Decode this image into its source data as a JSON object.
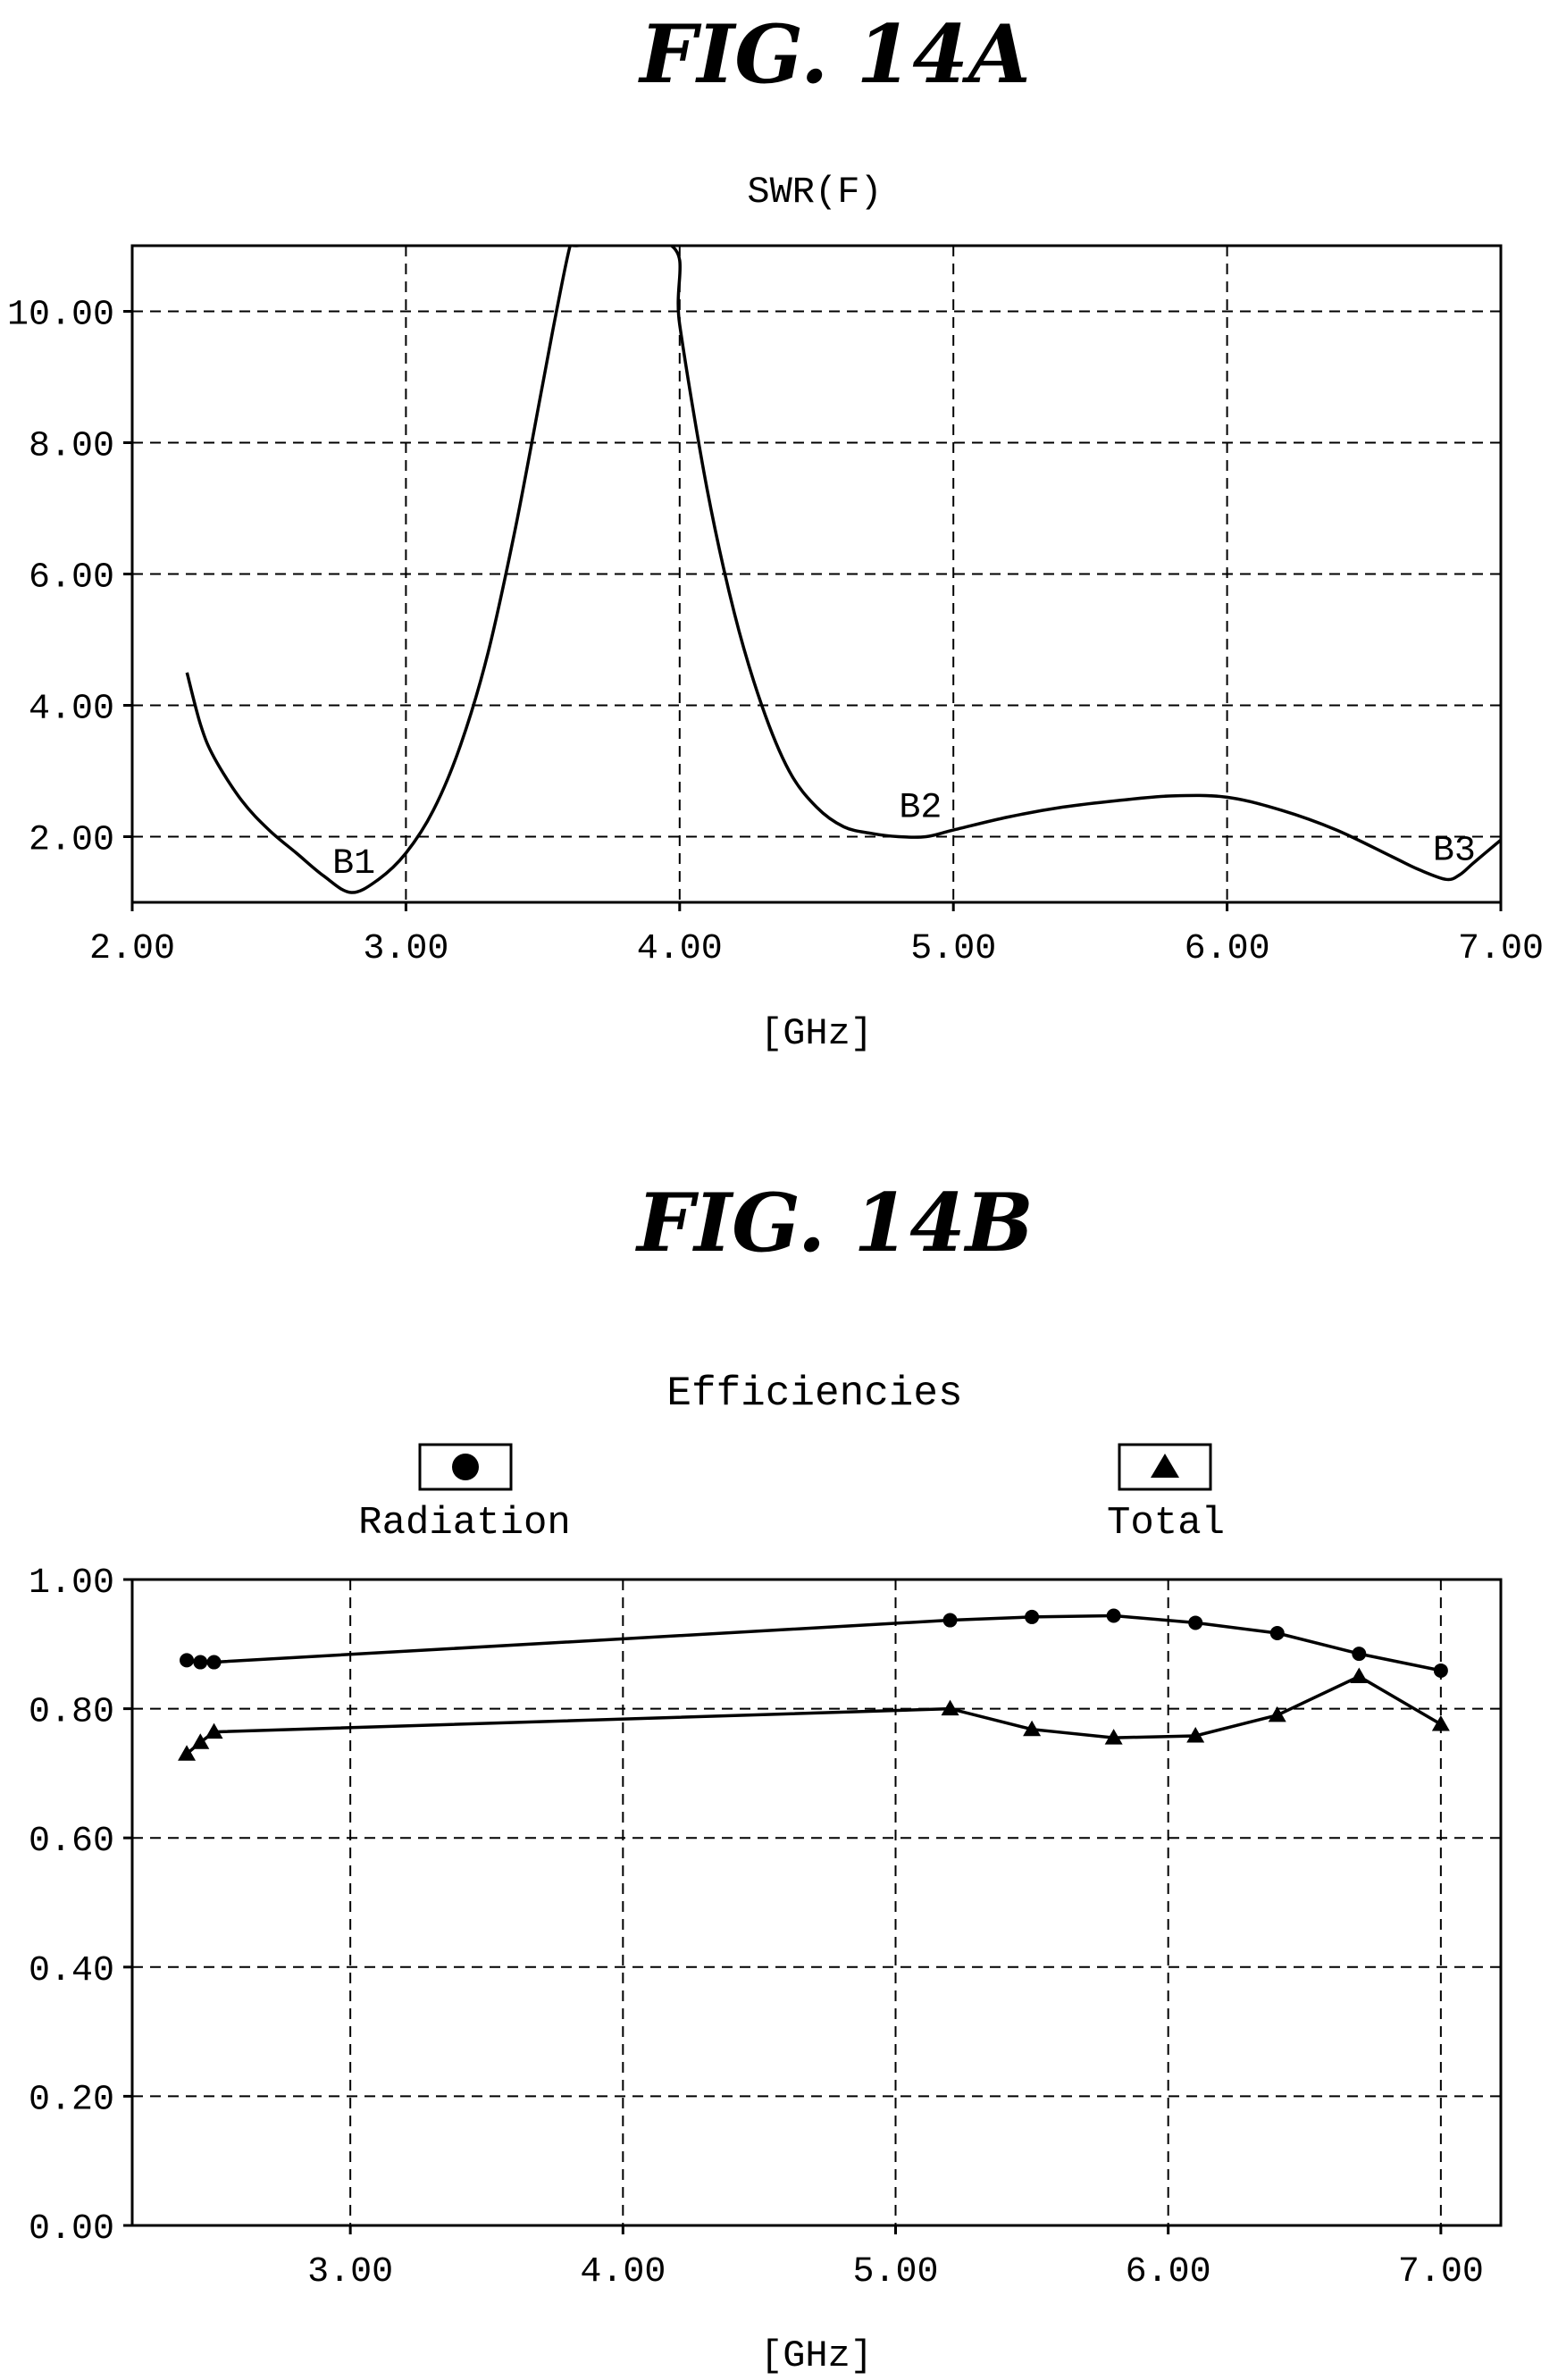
{
  "figures": {
    "a_label": "FIG. 14A",
    "b_label": "FIG. 14B"
  },
  "chart_data": [
    {
      "type": "line",
      "title": "SWR(F)",
      "xlabel": "[GHz]",
      "ylabel": "",
      "xlim": [
        2.0,
        7.0
      ],
      "ylim": [
        1.0,
        11.0
      ],
      "xticks": [
        "2.00",
        "3.00",
        "4.00",
        "5.00",
        "6.00",
        "7.00"
      ],
      "xtick_values": [
        2,
        3,
        4,
        5,
        6,
        7
      ],
      "yticks": [
        "2.00",
        "4.00",
        "6.00",
        "8.00",
        "10.00"
      ],
      "ytick_values": [
        2,
        4,
        6,
        8,
        10
      ],
      "grid": true,
      "series": [
        {
          "x": [
            2.2,
            2.25,
            2.3,
            2.4,
            2.5,
            2.6,
            2.7,
            2.8,
            2.9,
            3.0,
            3.1,
            3.2,
            3.3,
            3.4,
            3.5,
            3.55,
            3.6,
            3.62,
            3.97,
            4.0,
            4.1,
            4.2,
            4.3,
            4.4,
            4.5,
            4.6,
            4.7,
            4.8,
            4.9,
            5.0,
            5.2,
            5.4,
            5.6,
            5.8,
            6.0,
            6.2,
            6.4,
            6.6,
            6.7,
            6.8,
            6.85,
            6.9,
            7.0
          ],
          "y": [
            4.5,
            3.7,
            3.2,
            2.55,
            2.1,
            1.75,
            1.4,
            1.15,
            1.35,
            1.75,
            2.4,
            3.4,
            4.8,
            6.7,
            8.9,
            10.0,
            11.0,
            11.0,
            11.0,
            9.8,
            7.3,
            5.4,
            4.0,
            3.0,
            2.45,
            2.15,
            2.05,
            2.0,
            2.0,
            2.1,
            2.3,
            2.45,
            2.55,
            2.62,
            2.6,
            2.4,
            2.1,
            1.7,
            1.5,
            1.35,
            1.42,
            1.6,
            1.95
          ]
        }
      ],
      "annotations": [
        {
          "text": "B1",
          "x": 2.81,
          "y": 1.15
        },
        {
          "text": "B2",
          "x": 4.88,
          "y": 2.0
        },
        {
          "text": "B3",
          "x": 6.83,
          "y": 1.35
        }
      ]
    },
    {
      "type": "line",
      "title": "Efficiencies",
      "xlabel": "[GHz]",
      "ylabel": "",
      "xlim": [
        2.2,
        7.22
      ],
      "ylim": [
        0.0,
        1.0
      ],
      "xticks": [
        "3.00",
        "4.00",
        "5.00",
        "6.00",
        "7.00"
      ],
      "xtick_values": [
        3,
        4,
        5,
        6,
        7
      ],
      "yticks": [
        "0.00",
        "0.20",
        "0.40",
        "0.60",
        "0.80",
        "1.00"
      ],
      "ytick_values": [
        0,
        0.2,
        0.4,
        0.6,
        0.8,
        1.0
      ],
      "grid": true,
      "legend_position": "top",
      "series": [
        {
          "name": "Radiation",
          "marker": "circle",
          "x": [
            2.4,
            2.45,
            2.5,
            5.2,
            5.5,
            5.8,
            6.1,
            6.4,
            6.7,
            7.0
          ],
          "y": [
            0.875,
            0.872,
            0.872,
            0.937,
            0.942,
            0.944,
            0.933,
            0.917,
            0.885,
            0.859
          ]
        },
        {
          "name": "Total",
          "marker": "triangle",
          "x": [
            2.4,
            2.45,
            2.5,
            5.2,
            5.5,
            5.8,
            6.1,
            6.4,
            6.7,
            7.0
          ],
          "y": [
            0.73,
            0.748,
            0.764,
            0.8,
            0.768,
            0.755,
            0.758,
            0.79,
            0.85,
            0.776
          ]
        }
      ]
    }
  ]
}
